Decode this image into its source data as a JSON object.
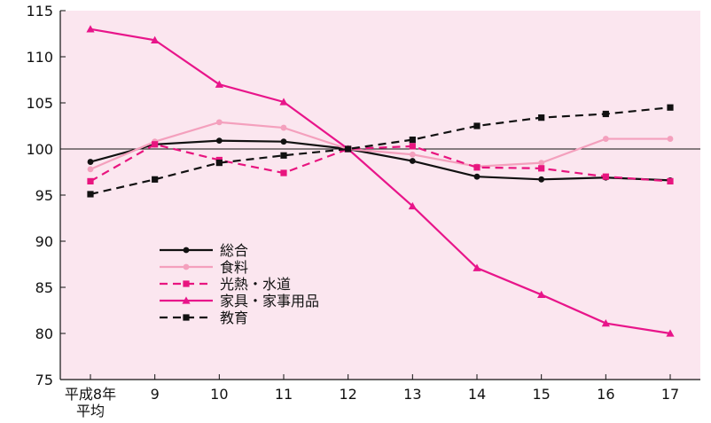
{
  "chart_data": {
    "type": "line",
    "title": "",
    "xlabel": "",
    "ylabel": "",
    "categories": [
      "平成8年平均",
      "9",
      "10",
      "11",
      "12",
      "13",
      "14",
      "15",
      "16",
      "17"
    ],
    "x_tick_labels": [
      [
        "平成8年",
        "平均"
      ],
      [
        "9"
      ],
      [
        "10"
      ],
      [
        "11"
      ],
      [
        "12"
      ],
      [
        "13"
      ],
      [
        "14"
      ],
      [
        "15"
      ],
      [
        "16"
      ],
      [
        "17"
      ]
    ],
    "ylim": [
      75,
      115
    ],
    "yticks": [
      75,
      80,
      85,
      90,
      95,
      100,
      105,
      110,
      115
    ],
    "reference_line": 100,
    "background_color": "#fbe6ef",
    "grid": false,
    "legend_position": "lower-left",
    "series": [
      {
        "name": "総合",
        "color": "#111111",
        "dashed": false,
        "marker": "circle",
        "values": [
          98.6,
          100.5,
          100.9,
          100.8,
          100.0,
          98.7,
          97.0,
          96.7,
          96.9,
          96.6
        ]
      },
      {
        "name": "食料",
        "color": "#f4a0bd",
        "dashed": false,
        "marker": "circle",
        "values": [
          97.8,
          100.8,
          102.9,
          102.3,
          100.0,
          99.4,
          98.1,
          98.5,
          101.1,
          101.1
        ]
      },
      {
        "name": "光熱・水道",
        "color": "#e8157f",
        "dashed": true,
        "marker": "square",
        "values": [
          96.5,
          100.5,
          98.8,
          97.4,
          100.0,
          100.3,
          98.0,
          97.9,
          97.0,
          96.5
        ]
      },
      {
        "name": "家具・家事用品",
        "color": "#e8158a",
        "dashed": false,
        "marker": "triangle",
        "values": [
          113.0,
          111.8,
          107.0,
          105.1,
          100.0,
          93.8,
          87.1,
          84.2,
          81.1,
          80.0
        ]
      },
      {
        "name": "教育",
        "color": "#111111",
        "dashed": true,
        "marker": "square",
        "values": [
          95.1,
          96.7,
          98.5,
          99.3,
          100.0,
          101.0,
          102.5,
          103.4,
          103.8,
          104.5
        ]
      }
    ]
  }
}
